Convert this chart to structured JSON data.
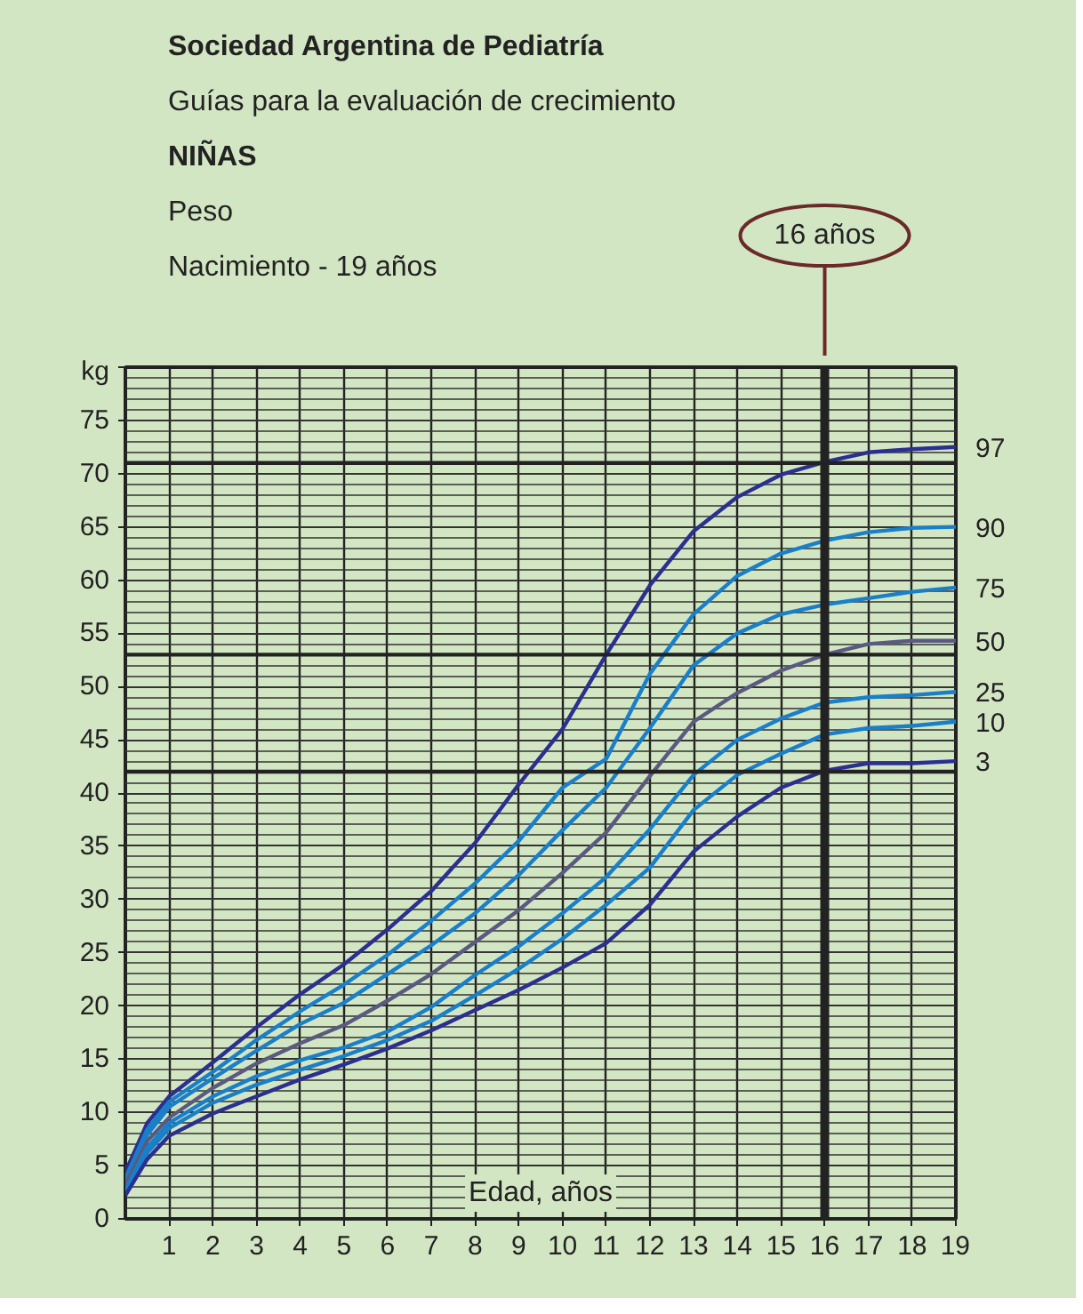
{
  "chart_data": {
    "type": "line",
    "title": "Sociedad Argentina de Pediatría",
    "subtitle": "Guías para la evaluación de crecimiento",
    "annotations": [
      "NIÑAS",
      "Peso",
      "Nacimiento - 19 años"
    ],
    "xlabel": "Edad, años",
    "ylabel": "kg",
    "x": [
      0,
      0.5,
      1,
      2,
      3,
      4,
      5,
      6,
      7,
      8,
      9,
      10,
      11,
      12,
      13,
      14,
      15,
      16,
      17,
      18,
      19
    ],
    "series": [
      {
        "name": "97",
        "color": "#2b2f8f",
        "values": [
          4.4,
          9.0,
          11.5,
          14.7,
          18,
          21.1,
          23.9,
          27.2,
          30.8,
          35.3,
          40.8,
          46,
          53,
          59.5,
          64.6,
          67.8,
          69.9,
          71.1,
          72,
          72.3,
          72.5
        ]
      },
      {
        "name": "90",
        "color": "#1a7fc9",
        "values": [
          3.8,
          8.4,
          11.0,
          13.8,
          16.8,
          19.5,
          22,
          24.8,
          28,
          31.5,
          35.5,
          40.5,
          43.2,
          51.2,
          56.8,
          60.4,
          62.5,
          63.7,
          64.5,
          64.9,
          65.0
        ]
      },
      {
        "name": "75",
        "color": "#1a7fc9",
        "values": [
          3.4,
          7.9,
          10.5,
          13.2,
          15.8,
          18.3,
          20.3,
          23,
          25.7,
          28.7,
          32.3,
          36.5,
          40.5,
          46.1,
          52,
          55,
          56.8,
          57.7,
          58.3,
          58.9,
          59.3
        ]
      },
      {
        "name": "50",
        "color": "#5a5a80",
        "values": [
          3.2,
          7.3,
          9.5,
          12.3,
          14.6,
          16.5,
          18.2,
          20.5,
          23,
          26,
          29,
          32.5,
          36.3,
          41.6,
          46.7,
          49.4,
          51.5,
          53,
          54,
          54.3,
          54.3
        ]
      },
      {
        "name": "25",
        "color": "#1a7fc9",
        "values": [
          2.7,
          6.7,
          9.0,
          11.5,
          13.4,
          14.9,
          16.1,
          17.6,
          19.9,
          22.9,
          25.6,
          28.7,
          32.1,
          36.6,
          41.7,
          45,
          47,
          48.5,
          49,
          49.2,
          49.5
        ]
      },
      {
        "name": "10",
        "color": "#1a7fc9",
        "values": [
          2.4,
          6.2,
          8.5,
          10.9,
          12.6,
          14.0,
          15.3,
          16.8,
          18.6,
          21,
          23.5,
          26.3,
          29.5,
          33,
          38.4,
          41.7,
          43.7,
          45.5,
          46.1,
          46.3,
          46.7
        ]
      },
      {
        "name": "3",
        "color": "#2b2f8f",
        "values": [
          2.2,
          5.6,
          7.8,
          9.9,
          11.5,
          13.1,
          14.5,
          16,
          17.7,
          19.6,
          21.5,
          23.6,
          25.9,
          29.5,
          34.5,
          37.8,
          40.5,
          42.1,
          42.8,
          42.8,
          43.0
        ]
      }
    ],
    "xlim": [
      0,
      19
    ],
    "ylim": [
      0,
      80
    ],
    "xticks": [
      1,
      2,
      3,
      4,
      5,
      6,
      7,
      8,
      9,
      10,
      11,
      12,
      13,
      14,
      15,
      16,
      17,
      18,
      19
    ],
    "yticks": [
      0,
      5,
      10,
      15,
      20,
      25,
      30,
      35,
      40,
      45,
      50,
      55,
      60,
      65,
      70,
      75
    ],
    "grid": true,
    "marker": "none",
    "line_style": "solid",
    "ref_lines": [
      {
        "axis": "x",
        "value": 16,
        "label": "16 años",
        "color": "#222222"
      },
      {
        "axis": "y",
        "value": 42,
        "color": "#222222"
      },
      {
        "axis": "y",
        "value": 53,
        "color": "#222222"
      },
      {
        "axis": "y",
        "value": 71,
        "color": "#222222"
      }
    ]
  }
}
